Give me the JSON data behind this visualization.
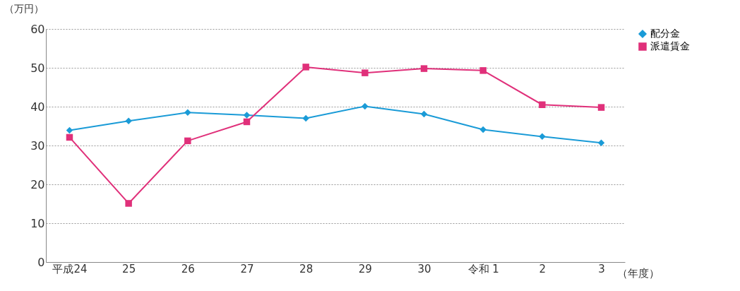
{
  "chart_data": {
    "type": "line",
    "ylabel": "（万円）",
    "xlabel": "（年度）",
    "categories": [
      "平成24",
      "25",
      "26",
      "27",
      "28",
      "29",
      "30",
      "令和 1",
      "2",
      "3"
    ],
    "series": [
      {
        "name": "配分金",
        "color": "#1a9bd7",
        "marker": "diamond",
        "values": [
          33.9,
          36.3,
          38.5,
          37.8,
          37.0,
          40.1,
          38.1,
          34.1,
          32.3,
          30.7
        ]
      },
      {
        "name": "派遣賃金",
        "color": "#e0307a",
        "marker": "square",
        "values": [
          32.1,
          15.1,
          31.2,
          36.1,
          50.2,
          48.7,
          49.8,
          49.3,
          40.5,
          39.8
        ]
      }
    ],
    "ylim": [
      0,
      60
    ],
    "yticks": [
      0,
      10,
      20,
      30,
      40,
      50,
      60
    ],
    "grid": "y",
    "legend": "right",
    "line_style": "solid"
  }
}
